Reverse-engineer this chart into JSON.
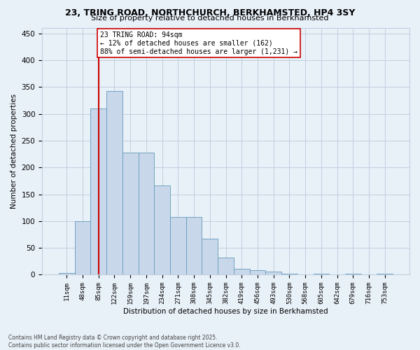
{
  "title1": "23, TRING ROAD, NORTHCHURCH, BERKHAMSTED, HP4 3SY",
  "title2": "Size of property relative to detached houses in Berkhamsted",
  "xlabel": "Distribution of detached houses by size in Berkhamsted",
  "ylabel": "Number of detached properties",
  "bar_color": "#c8d8ea",
  "bar_edge_color": "#6699bb",
  "grid_color": "#c0d0e0",
  "annotation_text": "23 TRING ROAD: 94sqm\n← 12% of detached houses are smaller (162)\n88% of semi-detached houses are larger (1,231) →",
  "vline_x_idx": 2,
  "vline_color": "#cc0000",
  "annotation_box_facecolor": "white",
  "annotation_box_edgecolor": "#cc0000",
  "categories": [
    "11sqm",
    "48sqm",
    "85sqm",
    "122sqm",
    "159sqm",
    "197sqm",
    "234sqm",
    "271sqm",
    "308sqm",
    "345sqm",
    "382sqm",
    "419sqm",
    "456sqm",
    "493sqm",
    "530sqm",
    "568sqm",
    "605sqm",
    "642sqm",
    "679sqm",
    "716sqm",
    "753sqm"
  ],
  "values": [
    3,
    100,
    310,
    342,
    228,
    228,
    167,
    107,
    107,
    67,
    32,
    11,
    8,
    6,
    2,
    0,
    2,
    0,
    2,
    0,
    2
  ],
  "ylim": [
    0,
    460
  ],
  "yticks": [
    0,
    50,
    100,
    150,
    200,
    250,
    300,
    350,
    400,
    450
  ],
  "footer": "Contains HM Land Registry data © Crown copyright and database right 2025.\nContains public sector information licensed under the Open Government Licence v3.0.",
  "bg_color": "#e8f0f8"
}
